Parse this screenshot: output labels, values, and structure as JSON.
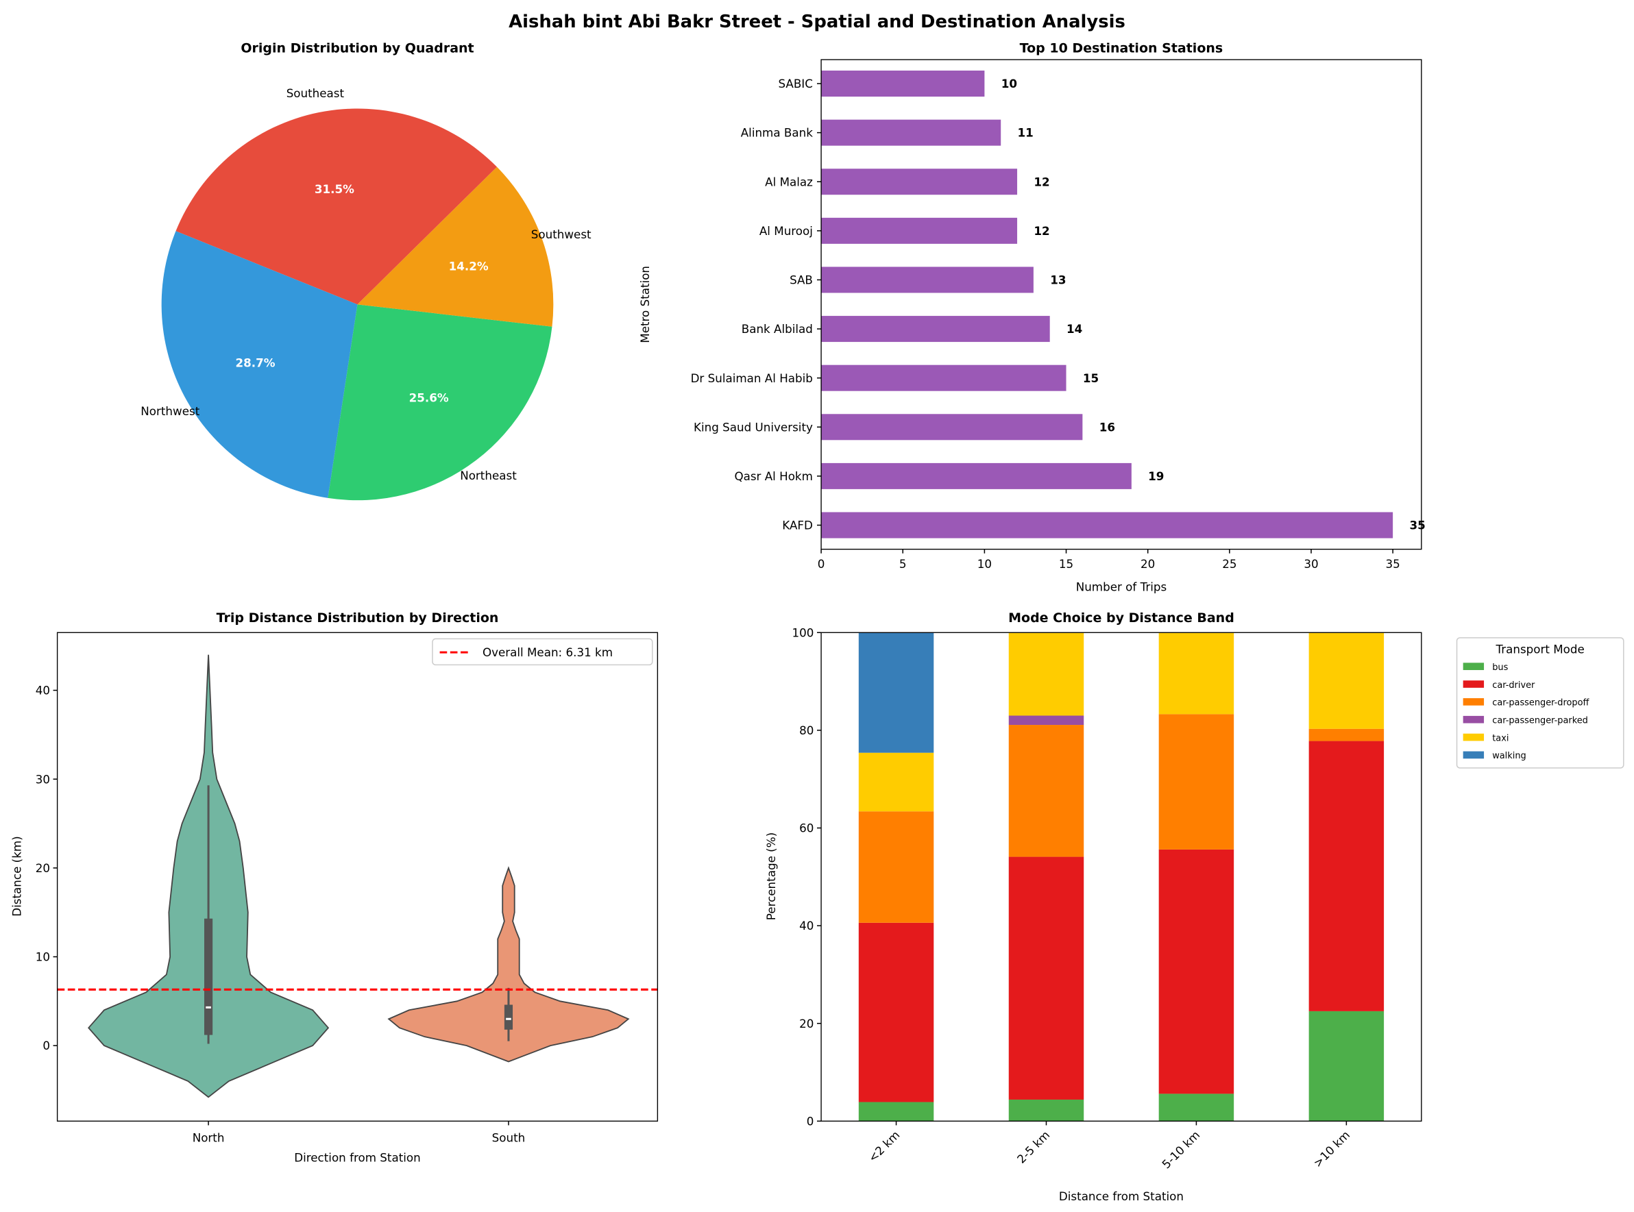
{
  "suptitle": "Aishah bint Abi Bakr Street - Spatial and Destination Analysis",
  "chart_data": [
    {
      "type": "pie",
      "title": "Origin Distribution by Quadrant",
      "labels": [
        "Southeast",
        "Northwest",
        "Northeast",
        "Southwest"
      ],
      "values": [
        31.5,
        28.7,
        25.6,
        14.2
      ],
      "pct_labels": [
        "31.5%",
        "28.7%",
        "25.6%",
        "14.2%"
      ],
      "colors": [
        "#e74c3c",
        "#3498db",
        "#2ecc71",
        "#f39c12"
      ]
    },
    {
      "type": "bar",
      "orientation": "horizontal",
      "title": "Top 10 Destination Stations",
      "xlabel": "Number of Trips",
      "ylabel": "Metro Station",
      "categories": [
        "SABIC",
        "Alinma Bank",
        "Al Malaz",
        "Al Murooj",
        "SAB",
        "Bank Albilad",
        "Dr Sulaiman Al Habib",
        "King Saud University",
        "Qasr Al Hokm",
        "KAFD"
      ],
      "values": [
        10,
        11,
        12,
        12,
        13,
        14,
        15,
        16,
        19,
        35
      ],
      "xticks": [
        0,
        5,
        10,
        15,
        20,
        25,
        30,
        35
      ],
      "xlim": [
        0,
        36.75
      ],
      "color": "#9b59b6"
    },
    {
      "type": "violin",
      "title": "Trip Distance Distribution by Direction",
      "xlabel": "Direction from Station",
      "ylabel": "Distance (km)",
      "categories": [
        "North",
        "South"
      ],
      "colors": [
        "#72b6a1",
        "#e99675"
      ],
      "ylim": [
        -8.5,
        46.5
      ],
      "yticks": [
        0,
        10,
        20,
        30,
        40
      ],
      "box": [
        {
          "whisker_low": 0.2,
          "q1": 1.2,
          "median": 4.3,
          "q3": 14.3,
          "whisker_high": 29.3
        },
        {
          "whisker_low": 0.5,
          "q1": 1.8,
          "median": 3.0,
          "q3": 4.6,
          "whisker_high": 6.5
        }
      ],
      "density": [
        [
          [
            -5.8,
            0
          ],
          [
            -4,
            0.17
          ],
          [
            -2,
            0.52
          ],
          [
            0,
            0.87
          ],
          [
            2,
            1
          ],
          [
            4,
            0.87
          ],
          [
            6,
            0.52
          ],
          [
            8,
            0.35
          ],
          [
            10,
            0.32
          ],
          [
            15,
            0.33
          ],
          [
            20,
            0.29
          ],
          [
            23,
            0.26
          ],
          [
            25,
            0.22
          ],
          [
            28,
            0.13
          ],
          [
            30,
            0.07
          ],
          [
            33,
            0.035
          ],
          [
            36,
            0.026
          ],
          [
            40,
            0.013
          ],
          [
            44,
            0
          ]
        ],
        [
          [
            -1.8,
            0
          ],
          [
            0,
            0.35
          ],
          [
            1,
            0.7
          ],
          [
            2,
            0.91
          ],
          [
            3,
            1
          ],
          [
            4,
            0.83
          ],
          [
            5,
            0.43
          ],
          [
            6,
            0.22
          ],
          [
            7,
            0.13
          ],
          [
            8,
            0.09
          ],
          [
            10,
            0.09
          ],
          [
            12,
            0.09
          ],
          [
            13,
            0.06
          ],
          [
            14,
            0.035
          ],
          [
            15,
            0.05
          ],
          [
            17,
            0.05
          ],
          [
            18,
            0.05
          ],
          [
            19,
            0.026
          ],
          [
            20,
            0
          ]
        ]
      ],
      "mean_line": {
        "value": 6.31,
        "label": "Overall Mean: 6.31 km",
        "color": "#ff0000"
      },
      "legend_position": "top-right"
    },
    {
      "type": "bar",
      "stacked": true,
      "title": "Mode Choice by Distance Band",
      "xlabel": "Distance from Station",
      "ylabel": "Percentage (%)",
      "categories": [
        "<2 km",
        "2-5 km",
        "5-10 km",
        ">10 km"
      ],
      "ylim": [
        0,
        100
      ],
      "yticks": [
        0,
        20,
        40,
        60,
        80,
        100
      ],
      "legend_title": "Transport Mode",
      "legend_position": "outside-right",
      "series": [
        {
          "name": "bus",
          "color": "#4daf4a",
          "values": [
            3.9,
            4.4,
            5.6,
            22.5
          ]
        },
        {
          "name": "car-driver",
          "color": "#e41a1c",
          "values": [
            36.7,
            49.7,
            50.0,
            55.3
          ]
        },
        {
          "name": "car-passenger-dropoff",
          "color": "#ff7f00",
          "values": [
            22.8,
            27.0,
            27.7,
            2.5
          ]
        },
        {
          "name": "car-passenger-parked",
          "color": "#984ea3",
          "values": [
            0,
            1.9,
            0,
            0
          ]
        },
        {
          "name": "taxi",
          "color": "#ffcc00",
          "values": [
            12.0,
            17.0,
            16.7,
            19.7
          ]
        },
        {
          "name": "walking",
          "color": "#377eb8",
          "values": [
            24.6,
            0,
            0,
            0
          ]
        }
      ]
    }
  ]
}
